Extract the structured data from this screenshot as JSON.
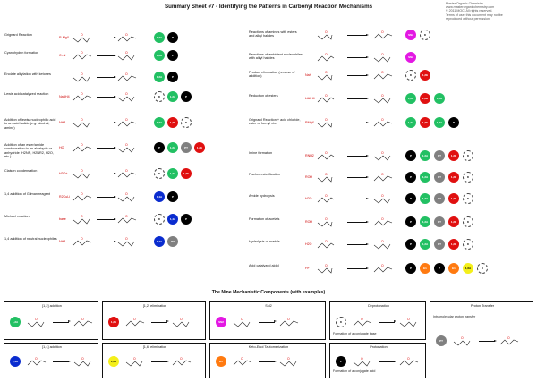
{
  "title": "Summary Sheet #7 - Identifying the Patterns in Carbonyl Reaction Mechanisms",
  "meta": [
    "Master Organic Chemistry",
    "www.masterorganicchemistry.com",
    "© 2011 MOC. All rights reserved.",
    "Terms of use: this document may not be",
    "reproduced without permission"
  ],
  "left_reactions": [
    {
      "label": "Grignard Reaction",
      "reagent": "R-MgX",
      "codes": [
        "1,2A",
        "P"
      ]
    },
    {
      "label": "Cyanohydrin formation",
      "reagent": "C≡N",
      "codes": [
        "1,2A",
        "P"
      ]
    },
    {
      "label": "Enolate alkylation with ketones",
      "reagent": "",
      "codes": [
        "1,2A",
        "P"
      ]
    },
    {
      "label": "Lewis acid catalyzed reaction",
      "reagent": "NaBH4",
      "codes": [
        "D",
        "1,2A",
        "P"
      ]
    },
    {
      "label": "Addition of lewis/ nucleophilic acid to an acid halide (e.g. alcohol, amine)",
      "reagent": "NH3",
      "codes": [
        "1,2A",
        "1,2E",
        "D"
      ]
    },
    {
      "label": "Addition of an ester/amide condensation to an aldehyde or anhydride (H2NR, H2NR2, H2O, etc.)",
      "reagent": "HO",
      "codes": [
        "P",
        "1,2A",
        "PT",
        "1,2E"
      ]
    },
    {
      "label": "Claisen condensation",
      "reagent": "H3O+",
      "codes": [
        "D",
        "1,2A",
        "1,2E"
      ]
    },
    {
      "label": "1,4 addition of Gilman reagent",
      "reagent": "R2CuLi",
      "codes": [
        "1,4A",
        "P"
      ]
    },
    {
      "label": "Michael reaction",
      "reagent": "base",
      "codes": [
        "D",
        "1,4A",
        "P"
      ]
    },
    {
      "label": "1,4 addition of neutral nucleophiles",
      "reagent": "NH3",
      "codes": [
        "1,4A",
        "PT"
      ]
    }
  ],
  "right_reactions": [
    {
      "label": "Reactions of amines with esters and alkyl halides",
      "reagent": "",
      "codes": [
        "SN2",
        "D"
      ]
    },
    {
      "label": "Reactions of ambident nucleophiles with alkyl halides",
      "reagent": "",
      "codes": [
        "SN2"
      ]
    },
    {
      "label": "Product elimination (reverse of addition)",
      "reagent": "NaH",
      "codes": [
        "D",
        "1,2E"
      ]
    },
    {
      "label": "Reduction of esters",
      "reagent": "LiAlH4",
      "codes": [
        "1,2A",
        "1,2E",
        "1,2A"
      ]
    },
    {
      "label": "Grignard Reaction + acid chloride, ester or formyl etc.",
      "reagent": "RMgX",
      "codes": [
        "1,2A",
        "1,2E",
        "1,2A",
        "P"
      ]
    },
    {
      "label": "Imine formation",
      "reagent": "RNH2",
      "codes": [
        "P",
        "1,2A",
        "PT",
        "1,2E",
        "D"
      ]
    },
    {
      "label": "Fischer esterification",
      "reagent": "ROH",
      "codes": [
        "P",
        "1,2A",
        "PT",
        "1,2E",
        "D"
      ]
    },
    {
      "label": "Amide hydrolysis",
      "reagent": "H2O",
      "codes": [
        "P",
        "1,2A",
        "PT",
        "1,2E",
        "D"
      ]
    },
    {
      "label": "Formation of acetals",
      "reagent": "ROH",
      "codes": [
        "P",
        "1,2A",
        "PT",
        "1,2E",
        "D"
      ]
    },
    {
      "label": "Hydrolysis of acetals",
      "reagent": "H2O",
      "codes": [
        "P",
        "1,2A",
        "PT",
        "1,2E",
        "D"
      ]
    },
    {
      "label": "Acid catalyzed aldol",
      "reagent": "H+",
      "codes": [
        "P",
        "E1",
        "P",
        "E1",
        "1,6A",
        "D"
      ]
    }
  ],
  "components_title": "The Nine Mechanistic Components (with examples)",
  "components": [
    {
      "code": "1,2A",
      "title": "[1,2] addition"
    },
    {
      "code": "1,2E",
      "title": "[1,2] elimination"
    },
    {
      "code": "SN2",
      "title": "SN2"
    },
    {
      "code": "D",
      "title": "Deprotonation"
    },
    {
      "code": "PT",
      "title": "Proton Transfer"
    },
    {
      "code": "1,4A",
      "title": "[1,4] addition"
    },
    {
      "code": "1,6A",
      "title": "[1,6] elimination"
    },
    {
      "code": "E1",
      "title": "Keto-Enol Tautomerization"
    },
    {
      "code": "P",
      "title": "Protonation"
    }
  ],
  "component_notes": {
    "deprotonation": "Formation of a conjugate base",
    "protonation": "Formation of a conjugate acid",
    "pt": "Intramolecular proton transfer"
  },
  "colors": {
    "addition": "#22c063",
    "elimination": "#e01010",
    "deprotonation": "#000000",
    "pt": "#808080",
    "add14": "#0a2ccf",
    "sn2": "#e318e3",
    "e1": "#ff7a10",
    "add16": "#f4ef1a"
  }
}
